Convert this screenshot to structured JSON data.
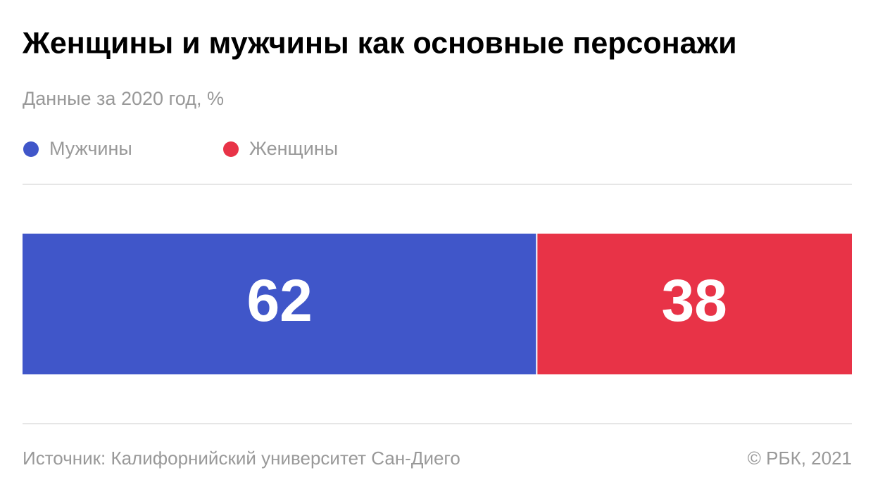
{
  "chart_data": {
    "type": "stacked-bar",
    "title": "Женщины и мужчины как основные персонажи",
    "subtitle": "Данные за 2020 год, %",
    "series": [
      {
        "name": "Мужчины",
        "color": "#4056c9",
        "values": [
          62
        ]
      },
      {
        "name": "Женщины",
        "color": "#e83347",
        "values": [
          38
        ]
      }
    ],
    "source": "Источник: Калифорнийский университет Сан-Диего",
    "credit": "© РБК, 2021"
  }
}
